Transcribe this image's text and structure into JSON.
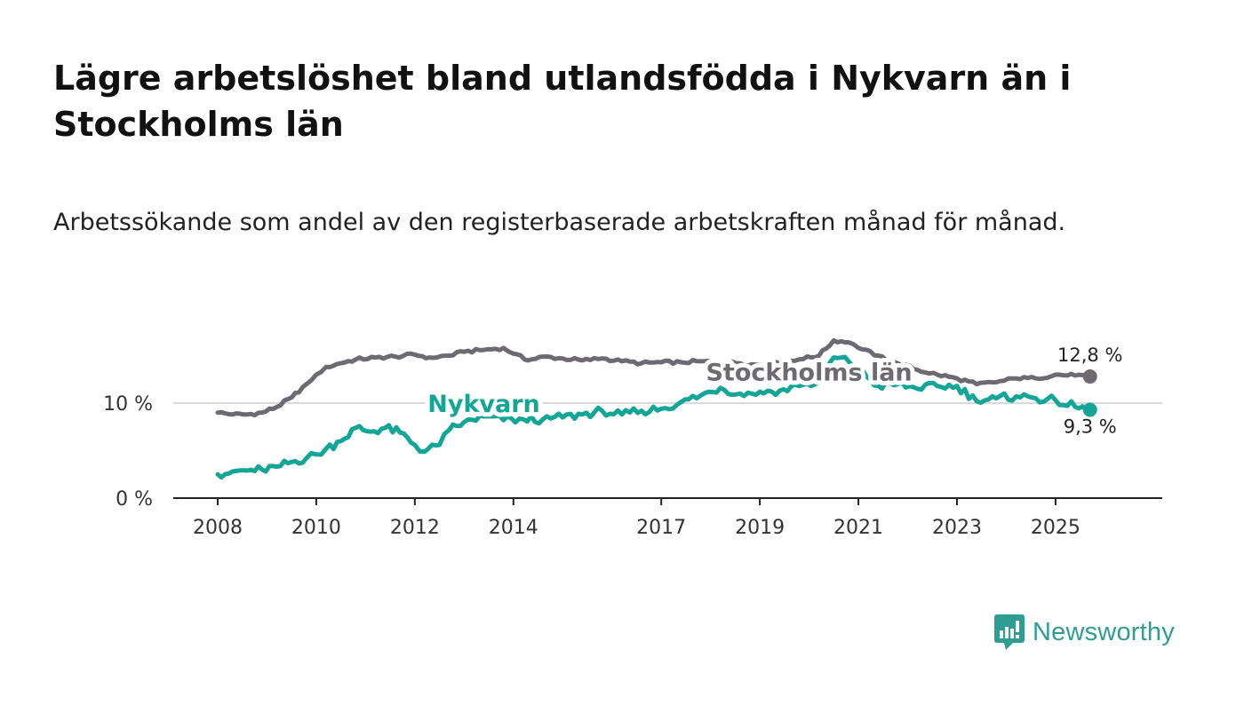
{
  "header": {
    "title": "Lägre arbetslöshet bland utlandsfödda i Nykvarn än i Stockholms län",
    "subtitle": "Arbetssökande som andel av den registerbaserade arbetskraften månad för månad."
  },
  "brand": {
    "name": "Newsworthy",
    "color": "#2e9e93",
    "icon": "newsworthy-logo-icon"
  },
  "colors": {
    "stockholm": "#6e6a72",
    "nykvarn": "#13a595",
    "axis": "#222222",
    "grid": "#d9d9d9"
  },
  "chart_data": {
    "type": "line",
    "title": "Lägre arbetslöshet bland utlandsfödda i Nykvarn än i Stockholms län",
    "xlabel": "",
    "ylabel": "",
    "xlim": [
      2008.0,
      2026.3
    ],
    "ylim": [
      0,
      20
    ],
    "grid": "horizontal",
    "y_ticks": [
      {
        "value": 0,
        "label": "0 %"
      },
      {
        "value": 10,
        "label": "10 %"
      }
    ],
    "x_ticks": [
      {
        "value": 2008,
        "label": "2008"
      },
      {
        "value": 2010,
        "label": "2010"
      },
      {
        "value": 2012,
        "label": "2012"
      },
      {
        "value": 2014,
        "label": "2014"
      },
      {
        "value": 2017,
        "label": "2017"
      },
      {
        "value": 2019,
        "label": "2019"
      },
      {
        "value": 2021,
        "label": "2021"
      },
      {
        "value": 2023,
        "label": "2023"
      },
      {
        "value": 2025,
        "label": "2025"
      }
    ],
    "series": [
      {
        "name": "Stockholms län",
        "color": "#6e6a72",
        "inline_label": "Stockholms län",
        "inline_label_at": {
          "x": 2020.0,
          "y": 13.3
        },
        "end_label": "12,8 %",
        "points": [
          [
            2008.0,
            9.0
          ],
          [
            2008.3,
            8.8
          ],
          [
            2008.6,
            8.8
          ],
          [
            2008.9,
            9.0
          ],
          [
            2009.2,
            9.6
          ],
          [
            2009.5,
            10.6
          ],
          [
            2009.8,
            12.0
          ],
          [
            2010.0,
            13.0
          ],
          [
            2010.2,
            13.8
          ],
          [
            2010.5,
            14.2
          ],
          [
            2010.8,
            14.6
          ],
          [
            2011.2,
            14.8
          ],
          [
            2011.6,
            14.9
          ],
          [
            2012.0,
            15.1
          ],
          [
            2012.3,
            14.8
          ],
          [
            2012.7,
            15.0
          ],
          [
            2013.0,
            15.4
          ],
          [
            2013.4,
            15.6
          ],
          [
            2013.8,
            15.8
          ],
          [
            2014.0,
            15.2
          ],
          [
            2014.3,
            14.5
          ],
          [
            2014.6,
            14.9
          ],
          [
            2015.0,
            14.7
          ],
          [
            2015.4,
            14.5
          ],
          [
            2015.8,
            14.7
          ],
          [
            2016.2,
            14.4
          ],
          [
            2016.6,
            14.2
          ],
          [
            2017.0,
            14.3
          ],
          [
            2017.4,
            14.3
          ],
          [
            2017.8,
            14.4
          ],
          [
            2018.2,
            14.3
          ],
          [
            2018.6,
            14.2
          ],
          [
            2019.0,
            14.0
          ],
          [
            2019.4,
            14.2
          ],
          [
            2019.8,
            14.6
          ],
          [
            2020.2,
            15.0
          ],
          [
            2020.5,
            16.6
          ],
          [
            2020.8,
            16.4
          ],
          [
            2021.0,
            15.8
          ],
          [
            2021.4,
            15.0
          ],
          [
            2021.8,
            14.2
          ],
          [
            2022.2,
            13.5
          ],
          [
            2022.6,
            13.0
          ],
          [
            2023.0,
            12.6
          ],
          [
            2023.4,
            12.0
          ],
          [
            2023.8,
            12.2
          ],
          [
            2024.2,
            12.6
          ],
          [
            2024.6,
            12.6
          ],
          [
            2025.0,
            13.0
          ],
          [
            2025.4,
            12.9
          ],
          [
            2025.7,
            12.8
          ]
        ]
      },
      {
        "name": "Nykvarn",
        "color": "#13a595",
        "inline_label": "Nykvarn",
        "inline_label_at": {
          "x": 2013.4,
          "y": 10.0
        },
        "end_label": "9,3 %",
        "points": [
          [
            2008.0,
            2.5
          ],
          [
            2008.3,
            2.8
          ],
          [
            2008.6,
            2.9
          ],
          [
            2008.9,
            3.0
          ],
          [
            2009.2,
            3.3
          ],
          [
            2009.5,
            3.8
          ],
          [
            2009.8,
            4.2
          ],
          [
            2010.0,
            4.6
          ],
          [
            2010.2,
            5.2
          ],
          [
            2010.5,
            6.0
          ],
          [
            2010.8,
            7.4
          ],
          [
            2011.1,
            7.0
          ],
          [
            2011.4,
            7.4
          ],
          [
            2011.7,
            6.9
          ],
          [
            2012.0,
            5.6
          ],
          [
            2012.2,
            4.9
          ],
          [
            2012.5,
            5.6
          ],
          [
            2012.7,
            7.2
          ],
          [
            2013.0,
            8.0
          ],
          [
            2013.4,
            8.6
          ],
          [
            2013.8,
            8.2
          ],
          [
            2014.2,
            8.3
          ],
          [
            2014.6,
            8.3
          ],
          [
            2015.0,
            8.5
          ],
          [
            2015.4,
            8.8
          ],
          [
            2015.8,
            9.2
          ],
          [
            2016.2,
            8.8
          ],
          [
            2016.6,
            9.2
          ],
          [
            2017.0,
            9.4
          ],
          [
            2017.4,
            10.1
          ],
          [
            2017.8,
            10.8
          ],
          [
            2018.2,
            11.6
          ],
          [
            2018.6,
            11.0
          ],
          [
            2019.0,
            11.2
          ],
          [
            2019.4,
            11.3
          ],
          [
            2019.8,
            11.8
          ],
          [
            2020.2,
            12.2
          ],
          [
            2020.5,
            14.8
          ],
          [
            2020.8,
            14.4
          ],
          [
            2021.0,
            13.6
          ],
          [
            2021.4,
            11.8
          ],
          [
            2021.8,
            12.0
          ],
          [
            2022.2,
            11.5
          ],
          [
            2022.6,
            11.8
          ],
          [
            2023.0,
            11.8
          ],
          [
            2023.4,
            10.2
          ],
          [
            2023.8,
            10.5
          ],
          [
            2024.2,
            10.7
          ],
          [
            2024.6,
            10.5
          ],
          [
            2025.0,
            10.3
          ],
          [
            2025.4,
            9.6
          ],
          [
            2025.7,
            9.3
          ]
        ]
      }
    ]
  }
}
